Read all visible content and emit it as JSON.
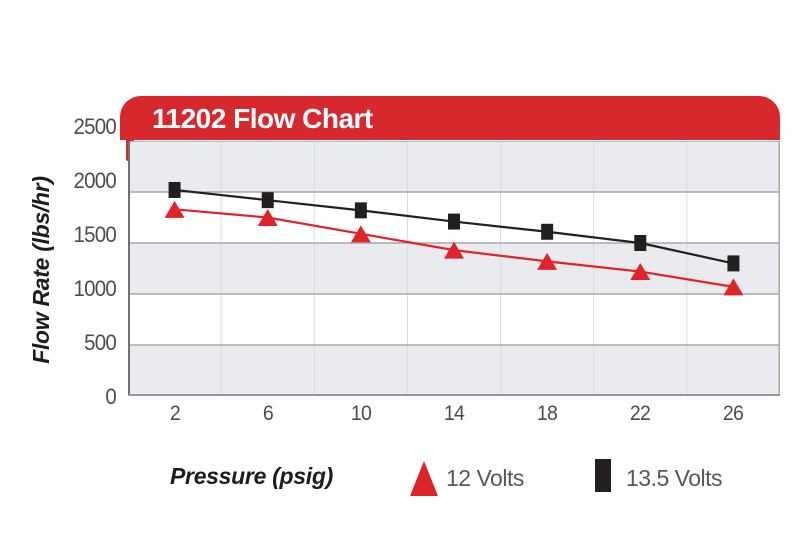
{
  "title_banner": {
    "text": "11202 Flow Chart"
  },
  "colors": {
    "banner_red": "#d7282d",
    "series_red": "#e02329",
    "series_black": "#231f20",
    "band_gray": "#eaebef",
    "band_white": "#ffffff",
    "h_gridline": "#a8a8ad",
    "v_gridline": "#d9d9df",
    "plot_top_line": "#b7b7bc",
    "left_axis_line": "#717175",
    "bottom_axis_line": "#98989c",
    "right_border_line": "#a8a8ad",
    "banner_text": "#ffffff",
    "tick_text": "#4c4c4e",
    "axis_title_text": "#1d1d1f",
    "legend_text": "#58585b"
  },
  "chart_data": {
    "type": "line",
    "title": "11202 Flow Chart",
    "xlabel": "Pressure (psig)",
    "ylabel": "Flow Rate (lbs/hr)",
    "x_ticks": [
      2,
      6,
      10,
      14,
      18,
      22,
      26
    ],
    "y_ticks": [
      0,
      500,
      1000,
      1500,
      2000,
      2500
    ],
    "ylim": [
      0,
      2500
    ],
    "grid": {
      "horizontal": true,
      "vertical": true,
      "alternating_bands": true
    },
    "legend_position": "bottom",
    "series": [
      {
        "name": "13.5 Volts",
        "marker": "square",
        "color_key": "series_black",
        "values": [
          2020,
          1920,
          1820,
          1710,
          1610,
          1500,
          1300
        ]
      },
      {
        "name": "12 Volts",
        "marker": "triangle",
        "color_key": "series_red",
        "values": [
          1830,
          1750,
          1590,
          1430,
          1320,
          1220,
          1070
        ]
      }
    ]
  },
  "legend": {
    "items": [
      {
        "label": "12 Volts",
        "marker": "triangle"
      },
      {
        "label": "13.5 Volts",
        "marker": "square"
      }
    ]
  }
}
